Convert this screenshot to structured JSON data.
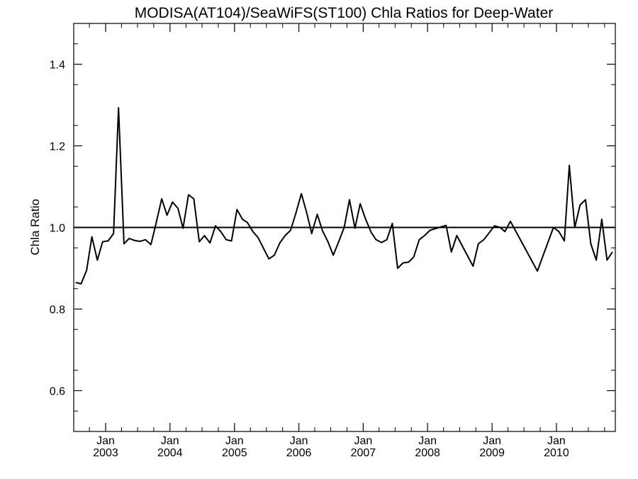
{
  "chart_data": {
    "type": "line",
    "title": "MODISA(AT104)/SeaWiFS(ST100)  Chla Ratios for Deep-Water",
    "xlabel": "",
    "ylabel": "Chla Ratio",
    "ylim": [
      0.5,
      1.5
    ],
    "xlim": [
      "2002-07-04",
      "2010-12-01"
    ],
    "yticks": [
      0.6,
      0.8,
      1.0,
      1.2,
      1.4
    ],
    "ytick_labels": [
      "0.6",
      "0.8",
      "1.0",
      "1.2",
      "1.4"
    ],
    "xticks": [
      {
        "month": "Jan",
        "year": "2003",
        "date": "2003-01-01"
      },
      {
        "month": "Jan",
        "year": "2004",
        "date": "2004-01-01"
      },
      {
        "month": "Jan",
        "year": "2005",
        "date": "2005-01-01"
      },
      {
        "month": "Jan",
        "year": "2006",
        "date": "2006-01-01"
      },
      {
        "month": "Jan",
        "year": "2007",
        "date": "2007-01-01"
      },
      {
        "month": "Jan",
        "year": "2008",
        "date": "2008-01-01"
      },
      {
        "month": "Jan",
        "year": "2009",
        "date": "2009-01-01"
      },
      {
        "month": "Jan",
        "year": "2010",
        "date": "2010-01-01"
      }
    ],
    "reference_line": 1.0,
    "grid": false,
    "series": [
      {
        "x": [
          "2002-07",
          "2002-08",
          "2002-09",
          "2002-10",
          "2002-11",
          "2002-12",
          "2003-01",
          "2003-02",
          "2003-03",
          "2003-04",
          "2003-05",
          "2003-06",
          "2003-07",
          "2003-08",
          "2003-09",
          "2003-10",
          "2003-11",
          "2003-12",
          "2004-01",
          "2004-02",
          "2004-03",
          "2004-04",
          "2004-05",
          "2004-06",
          "2004-07",
          "2004-08",
          "2004-09",
          "2004-10",
          "2004-11",
          "2004-12",
          "2005-01",
          "2005-02",
          "2005-03",
          "2005-04",
          "2005-05",
          "2005-07",
          "2005-08",
          "2005-09",
          "2005-10",
          "2005-11",
          "2005-12",
          "2006-01",
          "2006-02",
          "2006-03",
          "2006-04",
          "2006-05",
          "2006-06",
          "2006-07",
          "2006-08",
          "2006-09",
          "2006-10",
          "2006-11",
          "2006-12",
          "2007-01",
          "2007-02",
          "2007-03",
          "2007-04",
          "2007-05",
          "2007-06",
          "2007-07",
          "2007-08",
          "2007-09",
          "2007-10",
          "2007-11",
          "2007-12",
          "2008-01",
          "2008-04",
          "2008-05",
          "2008-06",
          "2008-09",
          "2008-10",
          "2008-11",
          "2009-01",
          "2009-02",
          "2009-03",
          "2009-04",
          "2009-09",
          "2009-12",
          "2010-01",
          "2010-02",
          "2010-03",
          "2010-04",
          "2010-05",
          "2010-06",
          "2010-07",
          "2010-08",
          "2010-09",
          "2010-10",
          "2010-11"
        ],
        "y": [
          0.865,
          0.862,
          0.895,
          0.977,
          0.92,
          0.965,
          0.967,
          0.985,
          1.293,
          0.96,
          0.973,
          0.968,
          0.966,
          0.97,
          0.958,
          1.012,
          1.07,
          1.03,
          1.062,
          1.047,
          0.998,
          1.08,
          1.07,
          0.965,
          0.98,
          0.962,
          1.004,
          0.99,
          0.97,
          0.967,
          1.044,
          1.02,
          1.012,
          0.99,
          0.975,
          0.923,
          0.932,
          0.962,
          0.98,
          0.993,
          1.035,
          1.083,
          1.035,
          0.985,
          1.032,
          0.992,
          0.965,
          0.932,
          0.965,
          1.0,
          1.068,
          0.998,
          1.058,
          1.02,
          0.988,
          0.97,
          0.963,
          0.97,
          1.01,
          0.9,
          0.913,
          0.915,
          0.928,
          0.97,
          0.98,
          0.993,
          1.005,
          0.94,
          0.98,
          0.905,
          0.96,
          0.97,
          1.004,
          1.0,
          0.99,
          1.015,
          0.893,
          1.0,
          0.99,
          0.967,
          1.152,
          1.0,
          1.055,
          1.068,
          0.96,
          0.92,
          1.02,
          0.92,
          0.94
        ]
      }
    ]
  }
}
